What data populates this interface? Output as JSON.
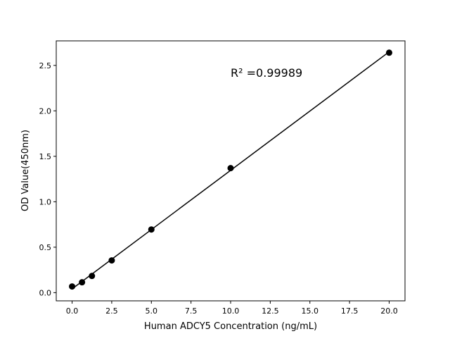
{
  "chart_data": {
    "type": "scatter",
    "title": "",
    "xlabel": "Human ADCY5 Concentration (ng/mL)",
    "ylabel": "OD Value(450nm)",
    "xlim": [
      -1,
      21
    ],
    "ylim": [
      -0.09,
      2.77
    ],
    "xticks": [
      "0.0",
      "2.5",
      "5.0",
      "7.5",
      "10.0",
      "12.5",
      "15.0",
      "17.5",
      "20.0"
    ],
    "yticks": [
      "0.0",
      "0.5",
      "1.0",
      "1.5",
      "2.0",
      "2.5"
    ],
    "grid": false,
    "series": [
      {
        "x": [
          0,
          0.625,
          1.25,
          2.5,
          5,
          10,
          20
        ],
        "y": [
          0.068,
          0.114,
          0.184,
          0.355,
          0.695,
          1.37,
          2.64
        ],
        "marker": "circle",
        "color": "#000000",
        "fit_line": "linear"
      }
    ],
    "annotation": "R² =0.99989"
  }
}
